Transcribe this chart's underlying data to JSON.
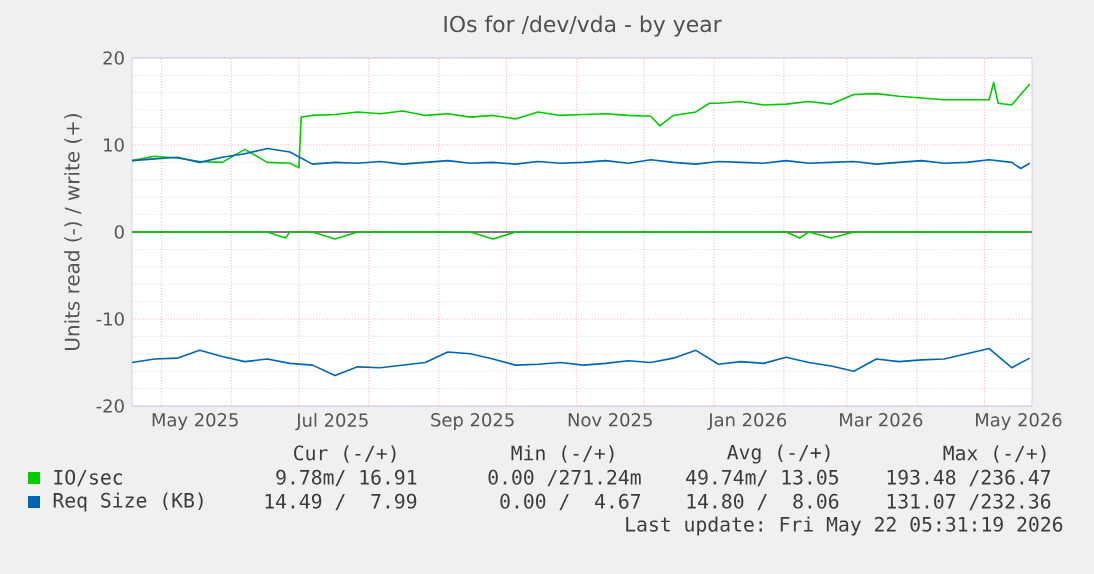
{
  "chart_data": {
    "type": "line",
    "title": "IOs for /dev/vda - by year",
    "ylabel": "Units read (-) / write (+)",
    "xlim": [
      "2025-04-18",
      "2026-05-22"
    ],
    "ylim": [
      -20,
      20
    ],
    "yticks": [
      -20,
      -10,
      0,
      10,
      20
    ],
    "xticks": [
      {
        "value": "2025-05-01",
        "label": null
      },
      {
        "value": "2025-06-01",
        "label": null
      },
      {
        "value": "2025-07-01",
        "label": null
      },
      {
        "value": "2025-08-01",
        "label": null
      },
      {
        "value": "2025-09-01",
        "label": null
      },
      {
        "value": "2025-10-01",
        "label": null
      },
      {
        "value": "2025-11-01",
        "label": null
      },
      {
        "value": "2025-12-01",
        "label": null
      },
      {
        "value": "2026-01-01",
        "label": null
      },
      {
        "value": "2026-02-01",
        "label": null
      },
      {
        "value": "2026-03-01",
        "label": null
      },
      {
        "value": "2026-04-01",
        "label": null
      },
      {
        "value": "2026-05-01",
        "label": null
      },
      {
        "value": "2025-05-16",
        "label": "May 2025"
      },
      {
        "value": "2025-07-16",
        "label": "Jul 2025"
      },
      {
        "value": "2025-09-16",
        "label": "Sep 2025"
      },
      {
        "value": "2025-11-16",
        "label": "Nov 2025"
      },
      {
        "value": "2026-01-16",
        "label": "Jan 2026"
      },
      {
        "value": "2026-03-16",
        "label": "Mar 2026"
      },
      {
        "value": "2026-05-16",
        "label": "May 2026"
      }
    ],
    "grid": true,
    "legend": "bottom",
    "ref_lines": [
      {
        "axis": "y",
        "value": 0,
        "color": "#000000"
      }
    ],
    "series": [
      {
        "color": "#00cc00",
        "x": [
          "2025-04-18",
          "2025-04-28",
          "2025-05-08",
          "2025-05-18",
          "2025-05-28",
          "2025-06-07",
          "2025-06-17",
          "2025-06-25",
          "2025-06-27",
          "2025-07-07",
          "2025-07-17",
          "2025-07-27",
          "2025-08-06",
          "2025-08-16",
          "2025-08-26",
          "2025-09-05",
          "2025-09-15",
          "2025-09-25",
          "2025-10-05",
          "2025-10-15",
          "2025-10-25",
          "2025-11-04",
          "2025-11-14",
          "2025-11-24",
          "2025-12-04",
          "2025-12-14",
          "2025-12-24",
          "2026-01-03",
          "2026-01-13",
          "2026-01-23",
          "2026-02-02",
          "2026-02-08",
          "2026-02-12",
          "2026-02-22",
          "2026-03-04",
          "2026-03-14",
          "2026-03-24",
          "2026-04-03",
          "2026-04-13",
          "2026-04-23",
          "2026-05-03",
          "2026-05-13",
          "2026-05-21"
        ],
        "values": [
          0,
          0,
          0,
          0,
          0,
          0,
          0,
          -0.7,
          0,
          0,
          -0.8,
          0,
          0,
          0,
          0,
          0,
          0,
          -0.8,
          0,
          0,
          0,
          0,
          0,
          0,
          0,
          0,
          0,
          0,
          0,
          0,
          0,
          -0.7,
          0,
          -0.7,
          0,
          0,
          0,
          0,
          0,
          0,
          0,
          0,
          0
        ]
      },
      {
        "name": "IO/sec",
        "color": "#00cc00",
        "x": [
          "2025-04-18",
          "2025-04-28",
          "2025-05-08",
          "2025-05-18",
          "2025-05-28",
          "2025-06-07",
          "2025-06-17",
          "2025-06-27",
          "2025-07-01",
          "2025-07-02",
          "2025-07-07",
          "2025-07-17",
          "2025-07-27",
          "2025-08-06",
          "2025-08-16",
          "2025-08-26",
          "2025-09-05",
          "2025-09-15",
          "2025-09-25",
          "2025-10-05",
          "2025-10-15",
          "2025-10-25",
          "2025-11-04",
          "2025-11-14",
          "2025-11-24",
          "2025-12-04",
          "2025-12-08",
          "2025-12-14",
          "2025-12-24",
          "2025-12-30",
          "2026-01-03",
          "2026-01-13",
          "2026-01-23",
          "2026-02-02",
          "2026-02-12",
          "2026-02-22",
          "2026-03-04",
          "2026-03-14",
          "2026-03-24",
          "2026-04-03",
          "2026-04-13",
          "2026-04-23",
          "2026-05-03",
          "2026-05-05",
          "2026-05-07",
          "2026-05-13",
          "2026-05-21"
        ],
        "values": [
          8.2,
          8.7,
          8.5,
          8.1,
          8.0,
          9.5,
          8.0,
          7.9,
          7.4,
          13.2,
          13.4,
          13.5,
          13.8,
          13.6,
          13.9,
          13.4,
          13.6,
          13.2,
          13.4,
          13.0,
          13.8,
          13.4,
          13.5,
          13.6,
          13.4,
          13.3,
          12.2,
          13.4,
          13.8,
          14.8,
          14.8,
          15.0,
          14.6,
          14.7,
          15.0,
          14.7,
          15.8,
          15.9,
          15.6,
          15.4,
          15.2,
          15.2,
          15.2,
          17.2,
          14.8,
          14.6,
          17.0
        ]
      },
      {
        "color": "#0066b3",
        "x": [
          "2025-04-18",
          "2025-04-28",
          "2025-05-08",
          "2025-05-18",
          "2025-05-28",
          "2025-06-07",
          "2025-06-17",
          "2025-06-27",
          "2025-07-07",
          "2025-07-17",
          "2025-07-27",
          "2025-08-06",
          "2025-08-16",
          "2025-08-26",
          "2025-09-05",
          "2025-09-15",
          "2025-09-25",
          "2025-10-05",
          "2025-10-15",
          "2025-10-25",
          "2025-11-04",
          "2025-11-14",
          "2025-11-24",
          "2025-12-04",
          "2025-12-14",
          "2025-12-24",
          "2026-01-03",
          "2026-01-13",
          "2026-01-23",
          "2026-02-02",
          "2026-02-12",
          "2026-02-22",
          "2026-03-04",
          "2026-03-14",
          "2026-03-24",
          "2026-04-03",
          "2026-04-13",
          "2026-04-23",
          "2026-05-03",
          "2026-05-13",
          "2026-05-21"
        ],
        "values": [
          -15.0,
          -14.6,
          -14.5,
          -13.6,
          -14.3,
          -14.9,
          -14.6,
          -15.1,
          -15.3,
          -16.5,
          -15.5,
          -15.6,
          -15.3,
          -15.0,
          -13.8,
          -14.0,
          -14.6,
          -15.3,
          -15.2,
          -15.0,
          -15.3,
          -15.1,
          -14.8,
          -15.0,
          -14.5,
          -13.6,
          -15.2,
          -14.9,
          -15.1,
          -14.4,
          -15.0,
          -15.4,
          -16.0,
          -14.6,
          -14.9,
          -14.7,
          -14.6,
          -14.0,
          -13.4,
          -15.6,
          -14.5
        ]
      },
      {
        "name": "Req Size (KB)",
        "color": "#0066b3",
        "x": [
          "2025-04-18",
          "2025-04-28",
          "2025-05-08",
          "2025-05-18",
          "2025-05-28",
          "2025-06-07",
          "2025-06-17",
          "2025-06-27",
          "2025-07-07",
          "2025-07-17",
          "2025-07-27",
          "2025-08-06",
          "2025-08-16",
          "2025-08-26",
          "2025-09-05",
          "2025-09-15",
          "2025-09-25",
          "2025-10-05",
          "2025-10-15",
          "2025-10-25",
          "2025-11-04",
          "2025-11-14",
          "2025-11-24",
          "2025-12-04",
          "2025-12-14",
          "2025-12-24",
          "2026-01-03",
          "2026-01-13",
          "2026-01-23",
          "2026-02-02",
          "2026-02-12",
          "2026-02-22",
          "2026-03-04",
          "2026-03-14",
          "2026-03-24",
          "2026-04-03",
          "2026-04-13",
          "2026-04-23",
          "2026-05-03",
          "2026-05-13",
          "2026-05-17",
          "2026-05-21"
        ],
        "values": [
          8.2,
          8.4,
          8.6,
          8.0,
          8.6,
          9.0,
          9.6,
          9.2,
          7.8,
          8.0,
          7.9,
          8.1,
          7.8,
          8.0,
          8.2,
          7.9,
          8.0,
          7.8,
          8.1,
          7.9,
          8.0,
          8.2,
          7.9,
          8.3,
          8.0,
          7.8,
          8.1,
          8.0,
          7.9,
          8.2,
          7.9,
          8.0,
          8.1,
          7.8,
          8.0,
          8.2,
          7.9,
          8.0,
          8.3,
          8.0,
          7.3,
          7.9
        ]
      }
    ],
    "annotations": [
      "Cur (-/+)",
      "Min (-/+)",
      "Avg (-/+)",
      "Max (-/+)",
      "9.78m/ 16.91",
      "0.00 /271.24m",
      "49.74m/ 13.05",
      "193.48 /236.47",
      "14.49 /  7.99",
      "0.00 /  4.67",
      "14.80 /  8.06",
      "131.07 /232.36",
      "Last update: Fri May 22 05:31:19 2026"
    ]
  }
}
